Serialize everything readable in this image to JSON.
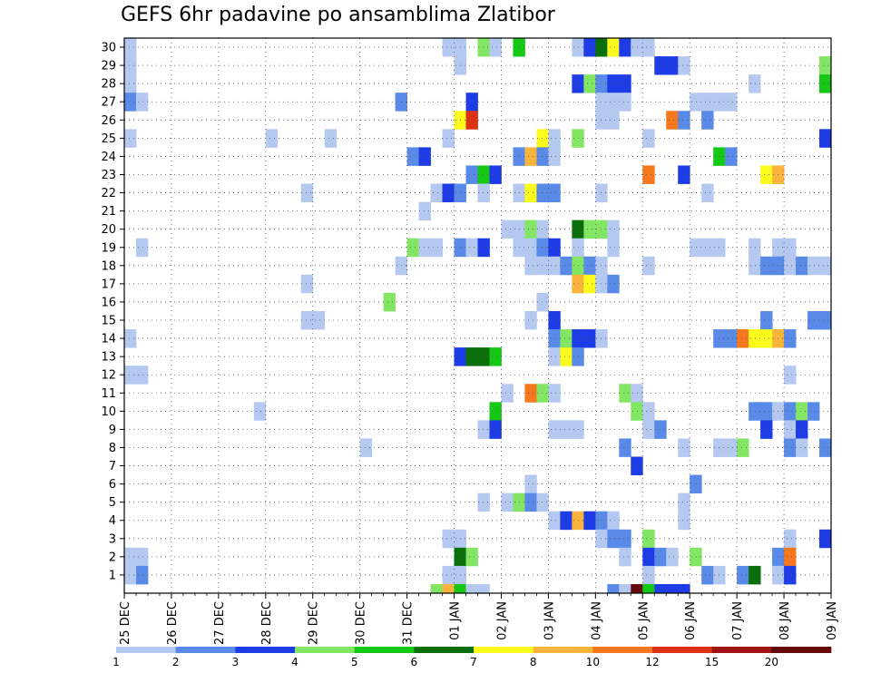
{
  "chart_data": {
    "type": "heatmap",
    "title": "GEFS 6hr padavine po ansamblima Zlatibor",
    "x_tick_labels": [
      "25 DEC",
      "26 DEC",
      "27 DEC",
      "28 DEC",
      "29 DEC",
      "30 DEC",
      "31 DEC",
      "01 JAN",
      "02 JAN",
      "03 JAN",
      "04 JAN",
      "05 JAN",
      "06 JAN",
      "07 JAN",
      "08 JAN",
      "09 JAN"
    ],
    "y_tick_labels": [
      "1",
      "2",
      "3",
      "4",
      "5",
      "6",
      "7",
      "8",
      "9",
      "10",
      "11",
      "12",
      "13",
      "14",
      "15",
      "16",
      "17",
      "18",
      "19",
      "20",
      "21",
      "22",
      "23",
      "24",
      "25",
      "26",
      "27",
      "28",
      "29",
      "30"
    ],
    "y_range": [
      0,
      30
    ],
    "x_steps_per_day": 4,
    "grid": true,
    "legend": {
      "position": "bottom",
      "labels": [
        "1",
        "2",
        "3",
        "4",
        "5",
        "6",
        "7",
        "8",
        "10",
        "12",
        "15",
        "20"
      ],
      "colors": [
        "#b4c8f0",
        "#5a8ae8",
        "#1e3ce6",
        "#82e664",
        "#14c814",
        "#0a6e0a",
        "#fafa1e",
        "#fab43c",
        "#f5781e",
        "#dc3214",
        "#a01414",
        "#640a0a"
      ]
    },
    "cells": [
      [
        30,
        0,
        1
      ],
      [
        30,
        27,
        1
      ],
      [
        30,
        28,
        1
      ],
      [
        30,
        30,
        4
      ],
      [
        30,
        31,
        1
      ],
      [
        30,
        33,
        5
      ],
      [
        30,
        38,
        1
      ],
      [
        30,
        39,
        3
      ],
      [
        30,
        40,
        6
      ],
      [
        30,
        41,
        7
      ],
      [
        30,
        42,
        3
      ],
      [
        30,
        43,
        1
      ],
      [
        30,
        44,
        1
      ],
      [
        29,
        0,
        1
      ],
      [
        29,
        28,
        1
      ],
      [
        29,
        45,
        3
      ],
      [
        29,
        46,
        3
      ],
      [
        29,
        47,
        1
      ],
      [
        29,
        59,
        4
      ],
      [
        28,
        0,
        1
      ],
      [
        28,
        38,
        3
      ],
      [
        28,
        39,
        4
      ],
      [
        28,
        40,
        2
      ],
      [
        28,
        41,
        3
      ],
      [
        28,
        42,
        3
      ],
      [
        28,
        53,
        1
      ],
      [
        28,
        59,
        5
      ],
      [
        27,
        0,
        2
      ],
      [
        27,
        1,
        1
      ],
      [
        27,
        23,
        2
      ],
      [
        27,
        29,
        3
      ],
      [
        27,
        40,
        1
      ],
      [
        27,
        41,
        1
      ],
      [
        27,
        42,
        1
      ],
      [
        27,
        48,
        1
      ],
      [
        27,
        49,
        1
      ],
      [
        27,
        50,
        1
      ],
      [
        27,
        51,
        1
      ],
      [
        26,
        28,
        7
      ],
      [
        26,
        29,
        10
      ],
      [
        26,
        40,
        1
      ],
      [
        26,
        41,
        1
      ],
      [
        26,
        46,
        9
      ],
      [
        26,
        47,
        2
      ],
      [
        26,
        49,
        2
      ],
      [
        25,
        0,
        1
      ],
      [
        25,
        12,
        1
      ],
      [
        25,
        17,
        1
      ],
      [
        25,
        27,
        1
      ],
      [
        25,
        35,
        7
      ],
      [
        25,
        36,
        1
      ],
      [
        25,
        38,
        4
      ],
      [
        25,
        44,
        1
      ],
      [
        25,
        59,
        3
      ],
      [
        24,
        24,
        2
      ],
      [
        24,
        25,
        3
      ],
      [
        24,
        33,
        2
      ],
      [
        24,
        34,
        8
      ],
      [
        24,
        35,
        2
      ],
      [
        24,
        36,
        1
      ],
      [
        24,
        50,
        5
      ],
      [
        24,
        51,
        2
      ],
      [
        23,
        29,
        2
      ],
      [
        23,
        30,
        5
      ],
      [
        23,
        31,
        3
      ],
      [
        23,
        44,
        9
      ],
      [
        23,
        47,
        3
      ],
      [
        23,
        54,
        7
      ],
      [
        23,
        55,
        8
      ],
      [
        22,
        15,
        1
      ],
      [
        22,
        26,
        1
      ],
      [
        22,
        27,
        3
      ],
      [
        22,
        28,
        2
      ],
      [
        22,
        30,
        1
      ],
      [
        22,
        33,
        1
      ],
      [
        22,
        34,
        7
      ],
      [
        22,
        35,
        2
      ],
      [
        22,
        36,
        2
      ],
      [
        22,
        40,
        1
      ],
      [
        22,
        49,
        1
      ],
      [
        21,
        25,
        1
      ],
      [
        20,
        32,
        1
      ],
      [
        20,
        33,
        1
      ],
      [
        20,
        34,
        4
      ],
      [
        20,
        35,
        1
      ],
      [
        20,
        38,
        6
      ],
      [
        20,
        39,
        4
      ],
      [
        20,
        40,
        4
      ],
      [
        20,
        41,
        1
      ],
      [
        19,
        1,
        1
      ],
      [
        19,
        24,
        4
      ],
      [
        19,
        25,
        1
      ],
      [
        19,
        26,
        1
      ],
      [
        19,
        28,
        2
      ],
      [
        19,
        29,
        1
      ],
      [
        19,
        30,
        3
      ],
      [
        19,
        33,
        1
      ],
      [
        19,
        34,
        1
      ],
      [
        19,
        35,
        2
      ],
      [
        19,
        36,
        3
      ],
      [
        19,
        38,
        1
      ],
      [
        19,
        41,
        1
      ],
      [
        19,
        48,
        1
      ],
      [
        19,
        49,
        1
      ],
      [
        19,
        50,
        1
      ],
      [
        19,
        53,
        1
      ],
      [
        19,
        55,
        1
      ],
      [
        19,
        56,
        1
      ],
      [
        18,
        23,
        1
      ],
      [
        18,
        34,
        1
      ],
      [
        18,
        35,
        1
      ],
      [
        18,
        36,
        1
      ],
      [
        18,
        37,
        2
      ],
      [
        18,
        38,
        4
      ],
      [
        18,
        39,
        2
      ],
      [
        18,
        40,
        1
      ],
      [
        18,
        44,
        1
      ],
      [
        18,
        53,
        1
      ],
      [
        18,
        54,
        2
      ],
      [
        18,
        55,
        2
      ],
      [
        18,
        56,
        1
      ],
      [
        18,
        57,
        2
      ],
      [
        18,
        58,
        1
      ],
      [
        18,
        59,
        1
      ],
      [
        17,
        15,
        1
      ],
      [
        17,
        38,
        8
      ],
      [
        17,
        39,
        7
      ],
      [
        17,
        40,
        1
      ],
      [
        17,
        41,
        2
      ],
      [
        16,
        22,
        4
      ],
      [
        16,
        35,
        1
      ],
      [
        15,
        15,
        1
      ],
      [
        15,
        16,
        1
      ],
      [
        15,
        34,
        1
      ],
      [
        15,
        36,
        3
      ],
      [
        15,
        54,
        2
      ],
      [
        15,
        58,
        2
      ],
      [
        15,
        59,
        2
      ],
      [
        14,
        0,
        1
      ],
      [
        14,
        36,
        2
      ],
      [
        14,
        37,
        4
      ],
      [
        14,
        38,
        3
      ],
      [
        14,
        39,
        3
      ],
      [
        14,
        40,
        1
      ],
      [
        14,
        50,
        2
      ],
      [
        14,
        51,
        2
      ],
      [
        14,
        52,
        9
      ],
      [
        14,
        53,
        7
      ],
      [
        14,
        54,
        7
      ],
      [
        14,
        55,
        8
      ],
      [
        14,
        56,
        2
      ],
      [
        13,
        28,
        3
      ],
      [
        13,
        29,
        6
      ],
      [
        13,
        30,
        6
      ],
      [
        13,
        31,
        5
      ],
      [
        13,
        36,
        1
      ],
      [
        13,
        37,
        7
      ],
      [
        13,
        38,
        2
      ],
      [
        12,
        0,
        1
      ],
      [
        12,
        1,
        1
      ],
      [
        12,
        56,
        1
      ],
      [
        11,
        32,
        1
      ],
      [
        11,
        34,
        9
      ],
      [
        11,
        35,
        4
      ],
      [
        11,
        36,
        1
      ],
      [
        11,
        42,
        4
      ],
      [
        11,
        43,
        1
      ],
      [
        10,
        11,
        1
      ],
      [
        10,
        31,
        5
      ],
      [
        10,
        43,
        4
      ],
      [
        10,
        44,
        1
      ],
      [
        10,
        53,
        2
      ],
      [
        10,
        54,
        2
      ],
      [
        10,
        55,
        1
      ],
      [
        10,
        56,
        2
      ],
      [
        10,
        57,
        4
      ],
      [
        10,
        58,
        2
      ],
      [
        9,
        30,
        1
      ],
      [
        9,
        31,
        3
      ],
      [
        9,
        36,
        1
      ],
      [
        9,
        37,
        1
      ],
      [
        9,
        38,
        1
      ],
      [
        9,
        44,
        1
      ],
      [
        9,
        45,
        2
      ],
      [
        9,
        54,
        3
      ],
      [
        9,
        56,
        1
      ],
      [
        9,
        57,
        3
      ],
      [
        8,
        20,
        1
      ],
      [
        8,
        42,
        2
      ],
      [
        8,
        47,
        1
      ],
      [
        8,
        50,
        1
      ],
      [
        8,
        51,
        1
      ],
      [
        8,
        52,
        4
      ],
      [
        8,
        56,
        2
      ],
      [
        8,
        57,
        1
      ],
      [
        8,
        59,
        2
      ],
      [
        7,
        43,
        3
      ],
      [
        6,
        34,
        1
      ],
      [
        6,
        48,
        2
      ],
      [
        5,
        30,
        1
      ],
      [
        5,
        32,
        1
      ],
      [
        5,
        33,
        4
      ],
      [
        5,
        34,
        2
      ],
      [
        5,
        35,
        1
      ],
      [
        5,
        47,
        1
      ],
      [
        4,
        36,
        1
      ],
      [
        4,
        37,
        3
      ],
      [
        4,
        38,
        8
      ],
      [
        4,
        39,
        3
      ],
      [
        4,
        40,
        2
      ],
      [
        4,
        41,
        1
      ],
      [
        4,
        47,
        1
      ],
      [
        3,
        27,
        1
      ],
      [
        3,
        28,
        1
      ],
      [
        3,
        40,
        1
      ],
      [
        3,
        41,
        2
      ],
      [
        3,
        42,
        2
      ],
      [
        3,
        44,
        4
      ],
      [
        3,
        56,
        1
      ],
      [
        3,
        59,
        3
      ],
      [
        2,
        0,
        1
      ],
      [
        2,
        1,
        1
      ],
      [
        2,
        28,
        6
      ],
      [
        2,
        29,
        4
      ],
      [
        2,
        42,
        1
      ],
      [
        2,
        44,
        3
      ],
      [
        2,
        45,
        2
      ],
      [
        2,
        46,
        1
      ],
      [
        2,
        48,
        4
      ],
      [
        2,
        55,
        2
      ],
      [
        2,
        56,
        9
      ],
      [
        1,
        0,
        1
      ],
      [
        1,
        1,
        2
      ],
      [
        1,
        27,
        1
      ],
      [
        1,
        28,
        1
      ],
      [
        1,
        44,
        1
      ],
      [
        1,
        49,
        2
      ],
      [
        1,
        50,
        1
      ],
      [
        1,
        52,
        2
      ],
      [
        1,
        53,
        6
      ],
      [
        1,
        55,
        1
      ],
      [
        1,
        56,
        3
      ]
    ],
    "member_0_row": {
      "y": 0,
      "cells": [
        [
          26,
          4
        ],
        [
          27,
          8
        ],
        [
          28,
          5
        ],
        [
          29,
          1
        ],
        [
          30,
          1
        ],
        [
          41,
          2
        ],
        [
          42,
          1
        ],
        [
          43,
          12
        ],
        [
          44,
          5
        ],
        [
          45,
          3
        ],
        [
          46,
          3
        ],
        [
          47,
          3
        ]
      ]
    }
  }
}
